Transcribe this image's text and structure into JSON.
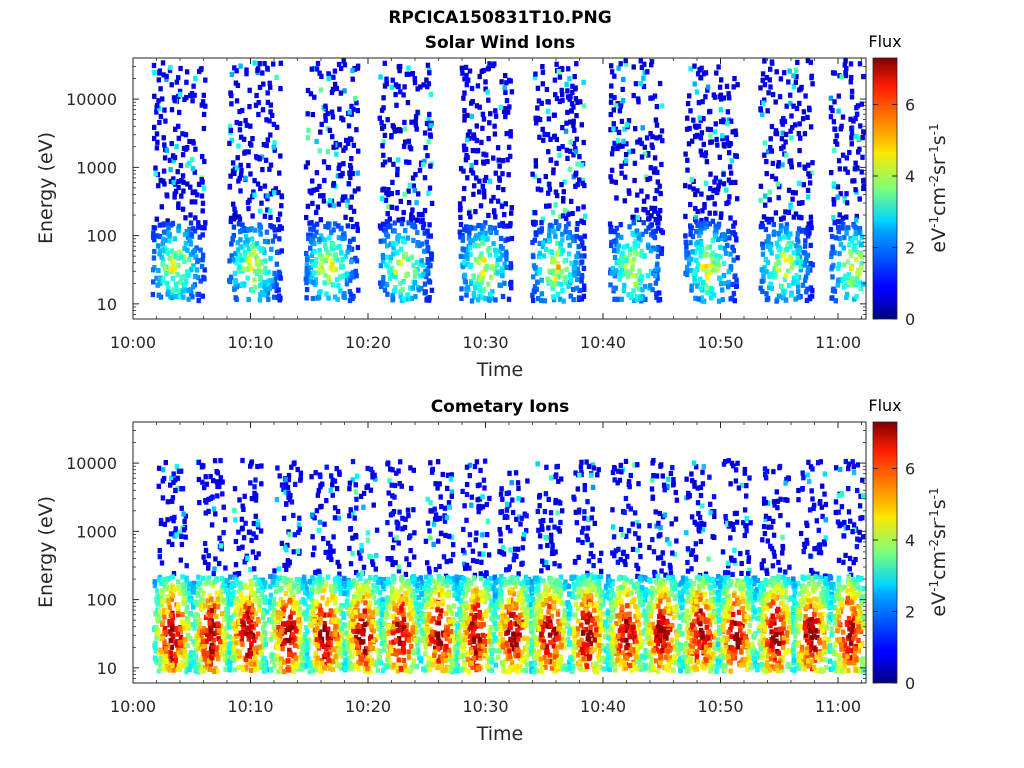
{
  "figure_title": "RPCICA150831T10.PNG",
  "chart_data": [
    {
      "type": "heatmap",
      "title": "Solar Wind Ions",
      "xlabel": "Time",
      "ylabel": "Energy (eV)",
      "x_range": [
        "10:00",
        "11:04"
      ],
      "x_ticks": [
        "10:00",
        "10:10",
        "10:20",
        "10:30",
        "10:40",
        "10:50",
        "11:00"
      ],
      "y_scale": "log",
      "y_range": [
        6,
        40000
      ],
      "y_ticks": [
        10,
        100,
        1000,
        10000
      ],
      "y_tick_labels": [
        "10",
        "100",
        "1000",
        "10000"
      ],
      "colorbar": {
        "title": "Flux",
        "label": "eV-1cm-2sr-1s-1",
        "range": [
          0,
          7.3
        ],
        "ticks": [
          0,
          2,
          4,
          6
        ],
        "tick_labels": [
          "0",
          "2",
          "4",
          "6"
        ],
        "colormap": "jet"
      },
      "bursts_start_minutes": [
        1.5,
        8.0,
        14.5,
        20.8,
        27.6,
        33.8,
        40.4,
        46.8,
        53.2,
        59.2
      ],
      "burst_duration_minutes": 4.5,
      "core_energy_range_eV": [
        10,
        150
      ],
      "core_peak_flux": 4.2,
      "scatter_energy_range_eV": [
        150,
        40000
      ],
      "scatter_flux_typical": 0.8
    },
    {
      "type": "heatmap",
      "title": "Cometary Ions",
      "xlabel": "Time",
      "ylabel": "Energy (eV)",
      "x_range": [
        "10:00",
        "11:04"
      ],
      "x_ticks": [
        "10:00",
        "10:10",
        "10:20",
        "10:30",
        "10:40",
        "10:50",
        "11:00"
      ],
      "y_scale": "log",
      "y_range": [
        6,
        40000
      ],
      "y_ticks": [
        10,
        100,
        1000,
        10000
      ],
      "y_tick_labels": [
        "10",
        "100",
        "1000",
        "10000"
      ],
      "colorbar": {
        "title": "Flux",
        "label": "eV-1cm-2sr-1s-1",
        "range": [
          0,
          7.3
        ],
        "ticks": [
          0,
          2,
          4,
          6
        ],
        "tick_labels": [
          "0",
          "2",
          "4",
          "6"
        ],
        "colormap": "jet"
      },
      "blob_center_minutes": [
        3.2,
        6.5,
        9.6,
        13.0,
        16.2,
        19.4,
        22.6,
        25.9,
        29.0,
        32.2,
        35.3,
        38.5,
        41.8,
        44.9,
        48.1,
        51.2,
        54.5,
        57.6,
        60.8
      ],
      "core_energy_range_eV": [
        8,
        200
      ],
      "core_peak_flux": 7.0,
      "scatter_energy_range_eV": [
        200,
        10000
      ],
      "scatter_flux_typical": 0.9
    }
  ]
}
